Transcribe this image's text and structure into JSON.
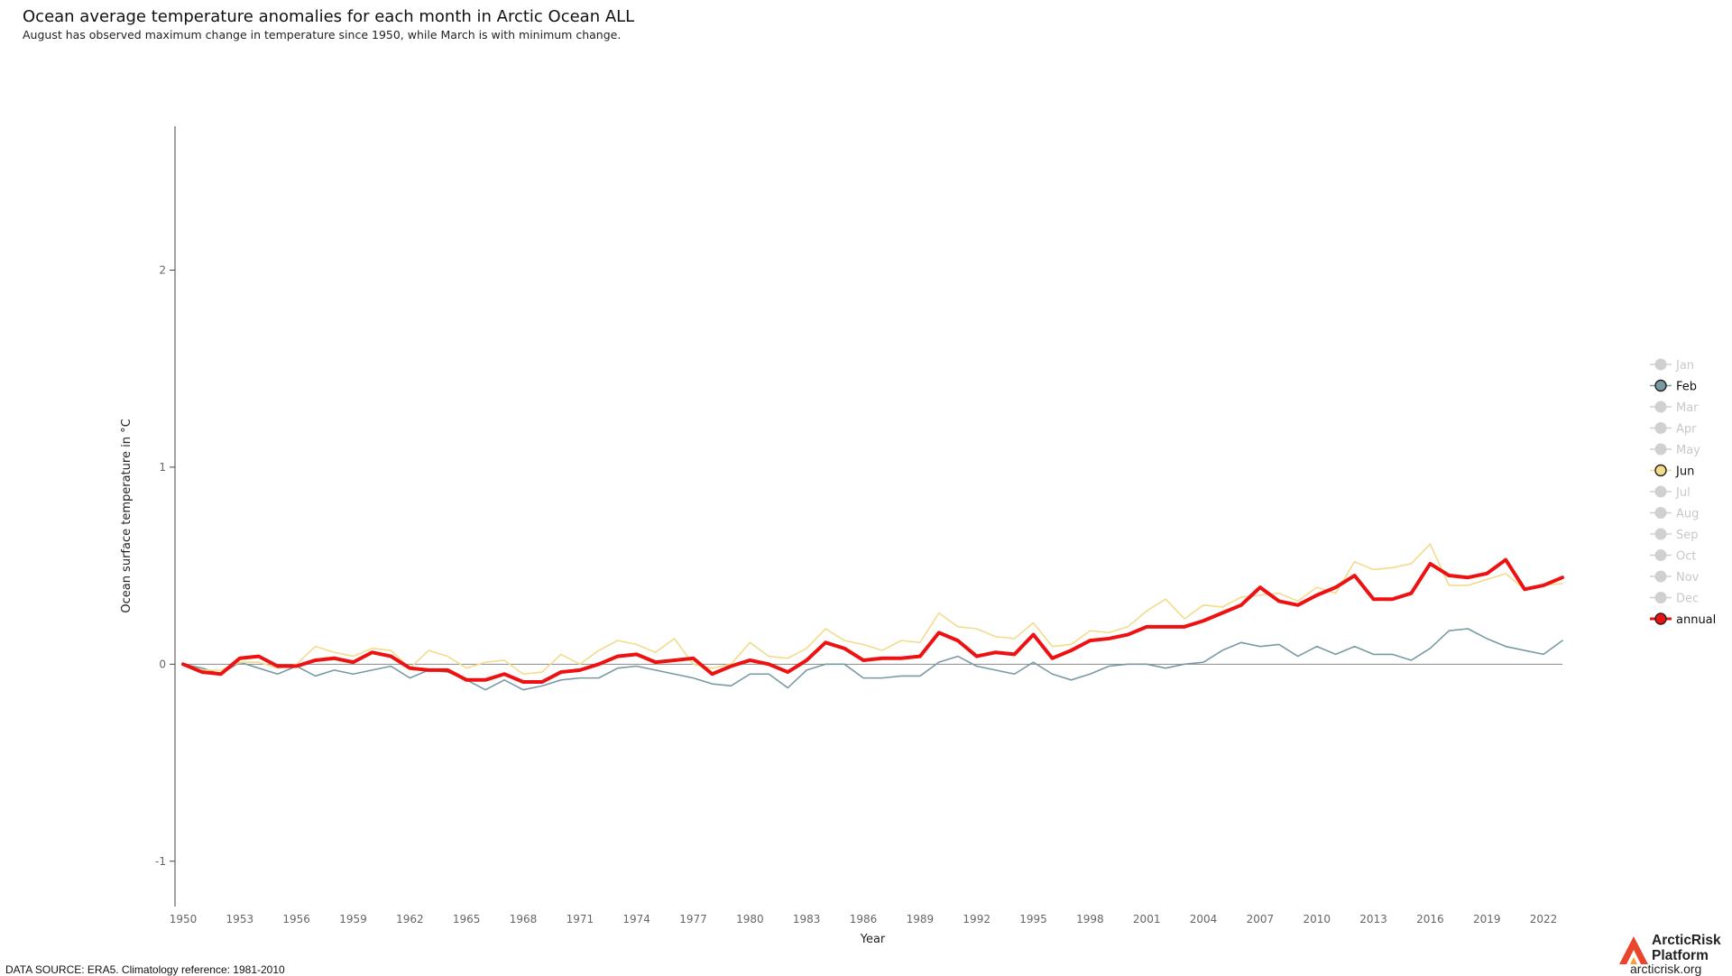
{
  "header": {
    "title": "Ocean average temperature anomalies for each month in Arctic Ocean ALL",
    "subtitle": "August has observed maximum change in temperature since 1950, while March is with minimum change."
  },
  "footer": {
    "source": "DATA SOURCE: ERA5. Climatology reference: 1981-2010"
  },
  "logo": {
    "name": "ArcticRisk\nPlatform",
    "url": "arcticrisk.org"
  },
  "chart_data": {
    "type": "line",
    "xlabel": "Year",
    "ylabel": "Ocean surface temperature in °C",
    "xlim": [
      1950,
      2023
    ],
    "ylim": [
      -1.23,
      2.73
    ],
    "xticks": [
      1950,
      1953,
      1956,
      1959,
      1962,
      1965,
      1968,
      1971,
      1974,
      1977,
      1980,
      1983,
      1986,
      1989,
      1992,
      1995,
      1998,
      2001,
      2004,
      2007,
      2010,
      2013,
      2016,
      2019,
      2022
    ],
    "yticks": [
      -1,
      0,
      1,
      2
    ],
    "zero_line": true,
    "grid": false,
    "legend_placement": "right",
    "x": [
      1950,
      1951,
      1952,
      1953,
      1954,
      1955,
      1956,
      1957,
      1958,
      1959,
      1960,
      1961,
      1962,
      1963,
      1964,
      1965,
      1966,
      1967,
      1968,
      1969,
      1970,
      1971,
      1972,
      1973,
      1974,
      1975,
      1976,
      1977,
      1978,
      1979,
      1980,
      1981,
      1982,
      1983,
      1984,
      1985,
      1986,
      1987,
      1988,
      1989,
      1990,
      1991,
      1992,
      1993,
      1994,
      1995,
      1996,
      1997,
      1998,
      1999,
      2000,
      2001,
      2002,
      2003,
      2004,
      2005,
      2006,
      2007,
      2008,
      2009,
      2010,
      2011,
      2012,
      2013,
      2014,
      2015,
      2016,
      2017,
      2018,
      2019,
      2020,
      2021,
      2022,
      2023
    ],
    "series": [
      {
        "name": "Jan",
        "visible": false,
        "color": "#cccccc"
      },
      {
        "name": "Feb",
        "visible": true,
        "color": "#7a9aa3",
        "values": [
          0.0,
          -0.02,
          -0.05,
          0.01,
          -0.02,
          -0.05,
          -0.01,
          -0.06,
          -0.03,
          -0.05,
          -0.03,
          -0.01,
          -0.07,
          -0.03,
          -0.04,
          -0.08,
          -0.13,
          -0.08,
          -0.13,
          -0.11,
          -0.08,
          -0.07,
          -0.07,
          -0.02,
          -0.01,
          -0.03,
          -0.05,
          -0.07,
          -0.1,
          -0.11,
          -0.05,
          -0.05,
          -0.12,
          -0.03,
          0.0,
          0.0,
          -0.07,
          -0.07,
          -0.06,
          -0.06,
          0.01,
          0.04,
          -0.01,
          -0.03,
          -0.05,
          0.01,
          -0.05,
          -0.08,
          -0.05,
          -0.01,
          0.0,
          0.0,
          -0.02,
          0.0,
          0.01,
          0.07,
          0.11,
          0.09,
          0.1,
          0.04,
          0.09,
          0.05,
          0.09,
          0.05,
          0.05,
          0.02,
          0.08,
          0.17,
          0.18,
          0.13,
          0.09,
          0.07,
          0.05,
          0.12
        ]
      },
      {
        "name": "Mar",
        "visible": false,
        "color": "#cccccc"
      },
      {
        "name": "Apr",
        "visible": false,
        "color": "#cccccc"
      },
      {
        "name": "May",
        "visible": false,
        "color": "#cccccc"
      },
      {
        "name": "Jun",
        "visible": true,
        "color": "#f2dc8c",
        "values": [
          0.0,
          -0.03,
          -0.03,
          0.01,
          0.01,
          -0.02,
          0.0,
          0.09,
          0.06,
          0.04,
          0.08,
          0.07,
          -0.02,
          0.07,
          0.04,
          -0.02,
          0.01,
          0.02,
          -0.05,
          -0.04,
          0.05,
          0.0,
          0.07,
          0.12,
          0.1,
          0.06,
          0.13,
          0.0,
          -0.02,
          0.0,
          0.11,
          0.04,
          0.03,
          0.08,
          0.18,
          0.12,
          0.1,
          0.07,
          0.12,
          0.11,
          0.26,
          0.19,
          0.18,
          0.14,
          0.13,
          0.21,
          0.09,
          0.1,
          0.17,
          0.16,
          0.19,
          0.27,
          0.33,
          0.23,
          0.3,
          0.29,
          0.34,
          0.35,
          0.36,
          0.32,
          0.39,
          0.36,
          0.52,
          0.48,
          0.49,
          0.51,
          0.61,
          0.4,
          0.4,
          0.43,
          0.46,
          0.38,
          0.4,
          0.41
        ]
      },
      {
        "name": "Jul",
        "visible": false,
        "color": "#cccccc"
      },
      {
        "name": "Aug",
        "visible": false,
        "color": "#cccccc"
      },
      {
        "name": "Sep",
        "visible": false,
        "color": "#cccccc"
      },
      {
        "name": "Oct",
        "visible": false,
        "color": "#cccccc"
      },
      {
        "name": "Nov",
        "visible": false,
        "color": "#cccccc"
      },
      {
        "name": "Dec",
        "visible": false,
        "color": "#cccccc"
      },
      {
        "name": "annual",
        "visible": true,
        "color": "#ee1111",
        "values": [
          0.0,
          -0.04,
          -0.05,
          0.03,
          0.04,
          -0.01,
          -0.01,
          0.02,
          0.03,
          0.01,
          0.06,
          0.04,
          -0.02,
          -0.03,
          -0.03,
          -0.08,
          -0.08,
          -0.05,
          -0.09,
          -0.09,
          -0.04,
          -0.03,
          0.0,
          0.04,
          0.05,
          0.01,
          0.02,
          0.03,
          -0.05,
          -0.01,
          0.02,
          0.0,
          -0.04,
          0.02,
          0.11,
          0.08,
          0.02,
          0.03,
          0.03,
          0.04,
          0.16,
          0.12,
          0.04,
          0.06,
          0.05,
          0.15,
          0.03,
          0.07,
          0.12,
          0.13,
          0.15,
          0.19,
          0.19,
          0.19,
          0.22,
          0.26,
          0.3,
          0.39,
          0.32,
          0.3,
          0.35,
          0.39,
          0.45,
          0.33,
          0.33,
          0.36,
          0.51,
          0.45,
          0.44,
          0.46,
          0.53,
          0.38,
          0.4,
          0.44
        ]
      }
    ]
  }
}
